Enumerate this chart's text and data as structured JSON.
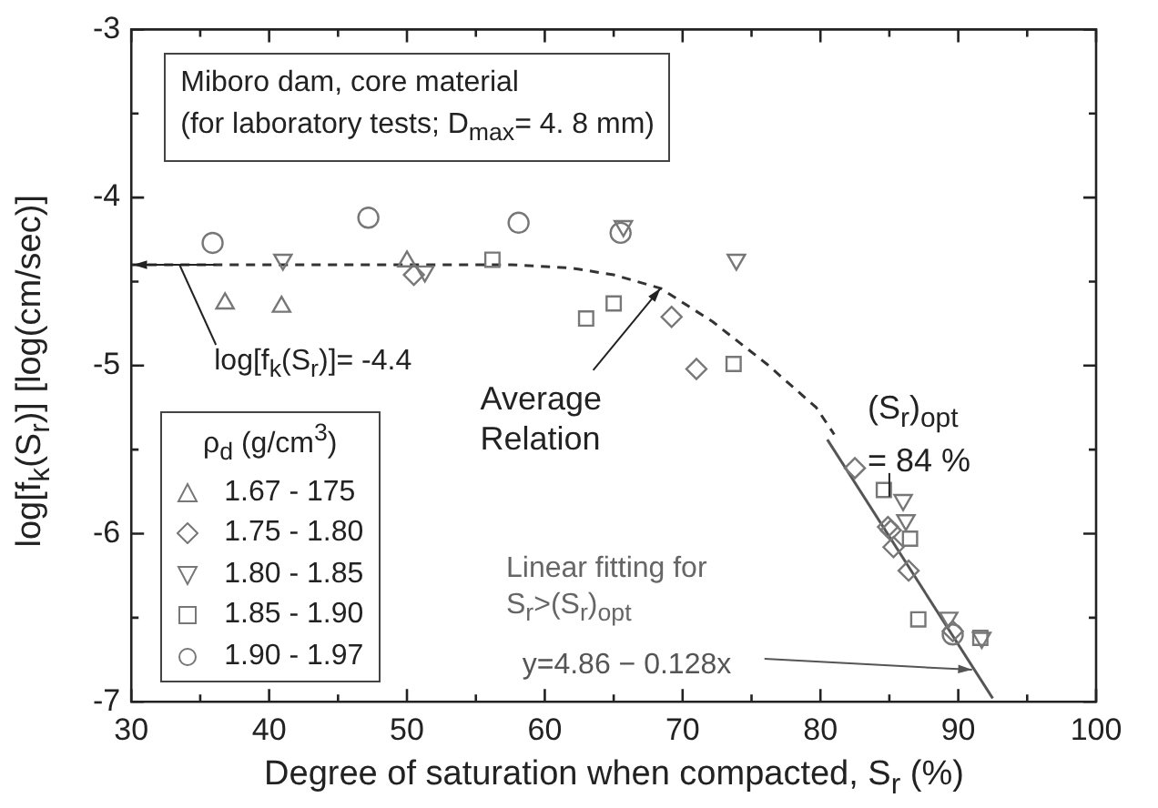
{
  "chart_data": {
    "type": "scatter",
    "title": "Miboro dam, core material\n(for laboratory tests; D$_{max}$= 4. 8 mm)",
    "xlabel": "Degree of saturation when compacted, S$_{r}$ (%)",
    "ylabel": "log[f$_{k}$(S$_{r}$)]    [log(cm/sec)]",
    "legend_title": "ρ$_{d}$ (g/cm$^{3}$)",
    "legend": "bottom left",
    "grid": false,
    "xlim": [
      30,
      100
    ],
    "xticks": [
      30,
      {
        "value": 35,
        "label": null
      },
      40,
      {
        "value": 45,
        "label": null
      },
      50,
      {
        "value": 55,
        "label": null
      },
      60,
      {
        "value": 65,
        "label": null
      },
      70,
      {
        "value": 75,
        "label": null
      },
      80,
      {
        "value": 85,
        "label": null
      },
      90,
      {
        "value": 95,
        "label": null
      },
      100
    ],
    "ylim": [
      -7,
      -3
    ],
    "yticks": [
      -7,
      {
        "value": -6.5,
        "label": null
      },
      -6,
      {
        "value": -5.5,
        "label": null
      },
      -5,
      {
        "value": -4.5,
        "label": null
      },
      -4,
      {
        "value": -3.5,
        "label": null
      },
      -3
    ],
    "series": [
      {
        "name": "1.67 - 175",
        "color": "#777777",
        "marker": "triangle",
        "x": [
          36.8,
          40.9,
          50.0
        ],
        "values": [
          -4.63,
          -4.65,
          -4.38
        ]
      },
      {
        "name": "1.75 - 1.80",
        "color": "#777777",
        "marker": "diamond",
        "x": [
          50.5,
          69.2,
          71.0,
          82.5,
          84.9,
          85.1,
          85.3,
          86.4,
          89.6
        ],
        "values": [
          -4.46,
          -4.71,
          -5.02,
          -5.61,
          -5.96,
          -5.98,
          -6.08,
          -6.22,
          -6.58
        ]
      },
      {
        "name": "1.80 - 1.85",
        "color": "#777777",
        "marker": "triangle-down",
        "x": [
          41.0,
          51.3,
          65.7,
          73.9,
          86.0,
          86.2,
          89.3,
          91.7
        ],
        "values": [
          -4.37,
          -4.44,
          -4.17,
          -4.37,
          -5.8,
          -5.92,
          -6.5,
          -6.62
        ]
      },
      {
        "name": "1.85 - 1.90",
        "color": "#777777",
        "marker": "square",
        "x": [
          56.2,
          63.0,
          65.0,
          73.7,
          84.6,
          86.5,
          87.1,
          91.6
        ],
        "values": [
          -4.37,
          -4.72,
          -4.63,
          -4.99,
          -5.74,
          -6.03,
          -6.51,
          -6.62
        ]
      },
      {
        "name": "1.90 - 1.97",
        "color": "#777777",
        "marker": "circle",
        "x": [
          35.9,
          47.2,
          58.1,
          65.5,
          89.6
        ],
        "values": [
          -4.27,
          -4.12,
          -4.15,
          -4.21,
          -6.6
        ]
      },
      {
        "type": "line",
        "color": "#333333",
        "line_style": "dashed",
        "marker": "none",
        "x": [
          30,
          57.6,
          62,
          65,
          68.4,
          72.2,
          76.1,
          79.7,
          81.0
        ],
        "values": [
          -4.4,
          -4.4,
          -4.42,
          -4.46,
          -4.54,
          -4.74,
          -4.99,
          -5.25,
          -5.41
        ]
      },
      {
        "type": "line",
        "color": "#555555",
        "line_style": "solid",
        "marker": "none",
        "x": [
          80.5,
          92.5
        ],
        "values": [
          -5.44,
          -6.98
        ]
      }
    ],
    "annotations": [
      {
        "text": "log[f$_{k}$(S$_{r}$)]= -4.4",
        "x": 33.5,
        "y": -4.4
      },
      {
        "text": "Average\nRelation",
        "x": 68.4,
        "y": -4.54
      },
      {
        "text": "(S$_{r}$)$_{opt}$\n= 84 %",
        "x": 85,
        "y": -5.78
      },
      "Linear fitting for\nS$_{r}$>(S$_{r}$)$_{opt}$",
      {
        "text": "y=4.86 − 0.128x",
        "x": 91,
        "y": -6.81
      }
    ]
  }
}
